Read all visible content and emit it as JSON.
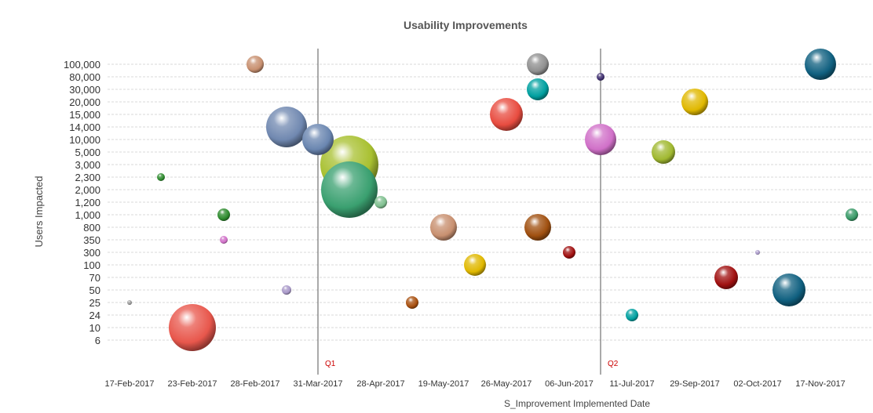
{
  "chart_data": {
    "type": "bubble",
    "title": "Usability Improvements",
    "xlabel": "S_Improvement Implemented Date",
    "ylabel": "Users Impacted",
    "x_tick_labels": [
      "17-Feb-2017",
      "23-Feb-2017",
      "28-Feb-2017",
      "31-Mar-2017",
      "28-Apr-2017",
      "19-May-2017",
      "26-May-2017",
      "06-Jun-2017",
      "11-Jul-2017",
      "29-Sep-2017",
      "02-Oct-2017",
      "17-Nov-2017"
    ],
    "x_category_count": 24,
    "y_categories": [
      "100,000",
      "80,000",
      "30,000",
      "20,000",
      "15,000",
      "14,000",
      "10,000",
      "5,000",
      "3,000",
      "2,300",
      "2,000",
      "1,200",
      "1,000",
      "800",
      "350",
      "300",
      "100",
      "70",
      "50",
      "25",
      "24",
      "10",
      "6"
    ],
    "reference_lines": [
      {
        "label": "Q1",
        "x_index": 6
      },
      {
        "label": "Q2",
        "x_index": 15
      }
    ],
    "reference_color": "#cc0000",
    "grid": true,
    "points": [
      {
        "x": 0,
        "y": "25",
        "size": 3,
        "color": "#9a9a9a"
      },
      {
        "x": 1,
        "y": "2,300",
        "size": 5,
        "color": "#2e8b2e"
      },
      {
        "x": 2,
        "y": "10",
        "size": 30,
        "color": "#e8574c"
      },
      {
        "x": 3,
        "y": "1,000",
        "size": 8,
        "color": "#2e8b2e"
      },
      {
        "x": 3,
        "y": "350",
        "size": 5,
        "color": "#d070c8"
      },
      {
        "x": 4,
        "y": "100,000",
        "size": 11,
        "color": "#c89070"
      },
      {
        "x": 5,
        "y": "14,000",
        "size": 26,
        "color": "#7088b0"
      },
      {
        "x": 5,
        "y": "50",
        "size": 6,
        "color": "#a898c8"
      },
      {
        "x": 6,
        "y": "10,000",
        "size": 20,
        "color": "#6a86b0"
      },
      {
        "x": 7,
        "y": "3,000",
        "size": 37,
        "color": "#a8c030"
      },
      {
        "x": 7,
        "y": "2,000",
        "size": 36,
        "color": "#3aa070"
      },
      {
        "x": 8,
        "y": "1,200",
        "size": 8,
        "color": "#80c090"
      },
      {
        "x": 9,
        "y": "25",
        "size": 8,
        "color": "#a85010"
      },
      {
        "x": 10,
        "y": "800",
        "size": 17,
        "color": "#c89070"
      },
      {
        "x": 11,
        "y": "100",
        "size": 14,
        "color": "#e0b800"
      },
      {
        "x": 12,
        "y": "15,000",
        "size": 21,
        "color": "#e84c40"
      },
      {
        "x": 13,
        "y": "100,000",
        "size": 14,
        "color": "#909090"
      },
      {
        "x": 13,
        "y": "30,000",
        "size": 14,
        "color": "#00a0a0"
      },
      {
        "x": 13,
        "y": "800",
        "size": 17,
        "color": "#a05010"
      },
      {
        "x": 14,
        "y": "300",
        "size": 8,
        "color": "#a01010"
      },
      {
        "x": 15,
        "y": "80,000",
        "size": 5,
        "color": "#403070"
      },
      {
        "x": 15,
        "y": "10,000",
        "size": 20,
        "color": "#d070c8"
      },
      {
        "x": 16,
        "y": "24",
        "size": 8,
        "color": "#00a0a0"
      },
      {
        "x": 17,
        "y": "5,000",
        "size": 15,
        "color": "#a0b830"
      },
      {
        "x": 18,
        "y": "20,000",
        "size": 17,
        "color": "#e0b800"
      },
      {
        "x": 19,
        "y": "70",
        "size": 15,
        "color": "#a01010"
      },
      {
        "x": 20,
        "y": "300",
        "size": 3,
        "color": "#a898c8"
      },
      {
        "x": 21,
        "y": "50",
        "size": 21,
        "color": "#106080"
      },
      {
        "x": 22,
        "y": "100,000",
        "size": 20,
        "color": "#106080"
      },
      {
        "x": 23,
        "y": "1,000",
        "size": 8,
        "color": "#3a9a68"
      }
    ]
  }
}
